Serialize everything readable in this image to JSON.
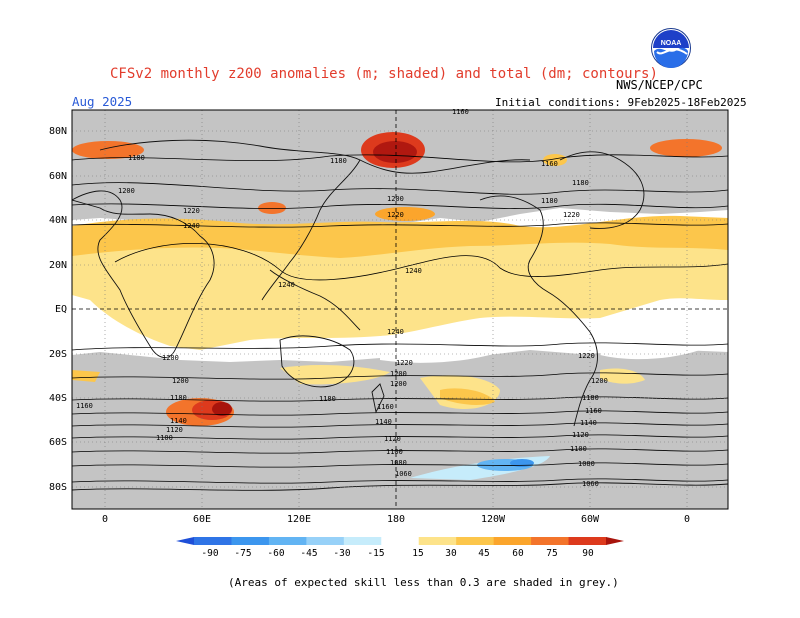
{
  "header": {
    "title": "CFSv2 monthly z200 anomalies (m; shaded) and total (dm; contours)",
    "period": "Aug 2025",
    "initial_conditions": "Initial conditions: 9Feb2025-18Feb2025",
    "agency": "NWS/NCEP/CPC",
    "logo_text": "NOAA"
  },
  "map": {
    "lat_labels": [
      "80N",
      "60N",
      "40N",
      "20N",
      "EQ",
      "20S",
      "40S",
      "60S",
      "80S"
    ],
    "lon_labels": [
      "0",
      "60E",
      "120E",
      "180",
      "120W",
      "60W",
      "0"
    ],
    "contour_labels": [
      "1160",
      "1180",
      "1180",
      "1200",
      "1220",
      "1240",
      "1240",
      "1240",
      "1240",
      "1180",
      "1200",
      "1220",
      "1160",
      "1180",
      "1220",
      "1200",
      "1180",
      "1160",
      "1140",
      "1120",
      "1100",
      "1180",
      "1200",
      "1220",
      "1200",
      "1160",
      "1140",
      "1120",
      "1100",
      "1080",
      "1060",
      "1180",
      "1160",
      "1140",
      "1120",
      "1100",
      "1080",
      "1060",
      "1220",
      "1200",
      "1200"
    ]
  },
  "colorbar": {
    "tick_labels": [
      "-90",
      "-75",
      "-60",
      "-45",
      "-30",
      "-15",
      "15",
      "30",
      "45",
      "60",
      "75",
      "90"
    ],
    "colors": [
      "#1e4fd8",
      "#2f74e6",
      "#3c96ee",
      "#62b4f3",
      "#97d1f8",
      "#c6ecfb",
      "#ffffff",
      "#fde38a",
      "#fcc64b",
      "#fba52c",
      "#f3742b",
      "#dd3a1d",
      "#a8140c"
    ]
  },
  "footnote": "(Areas of expected skill less than 0.3 are shaded in grey.)"
}
